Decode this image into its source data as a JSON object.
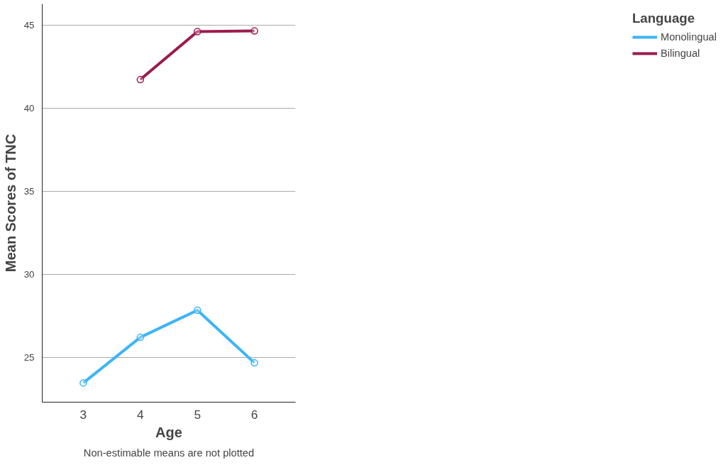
{
  "chart_data": {
    "type": "line",
    "xlabel": "Age",
    "ylabel": "Mean Scores of TNC",
    "legend_title": "Language",
    "categories": [
      "3",
      "4",
      "5",
      "6"
    ],
    "series": [
      {
        "name": "Monolingual",
        "color": "#3cb4f8",
        "values": [
          23.46,
          26.21,
          27.84,
          24.67
        ]
      },
      {
        "name": "Bilingual",
        "color": "#9b1b4f",
        "values": [
          null,
          41.74,
          44.63,
          44.67
        ]
      }
    ],
    "ylim": [
      22.3,
      46.3
    ],
    "yticks": [
      25,
      30,
      35,
      40,
      45
    ],
    "grid": "y",
    "legend": "right",
    "marker": "circle",
    "line_style": "solid",
    "annotations": [
      "Non-estimable means are not plotted"
    ]
  }
}
